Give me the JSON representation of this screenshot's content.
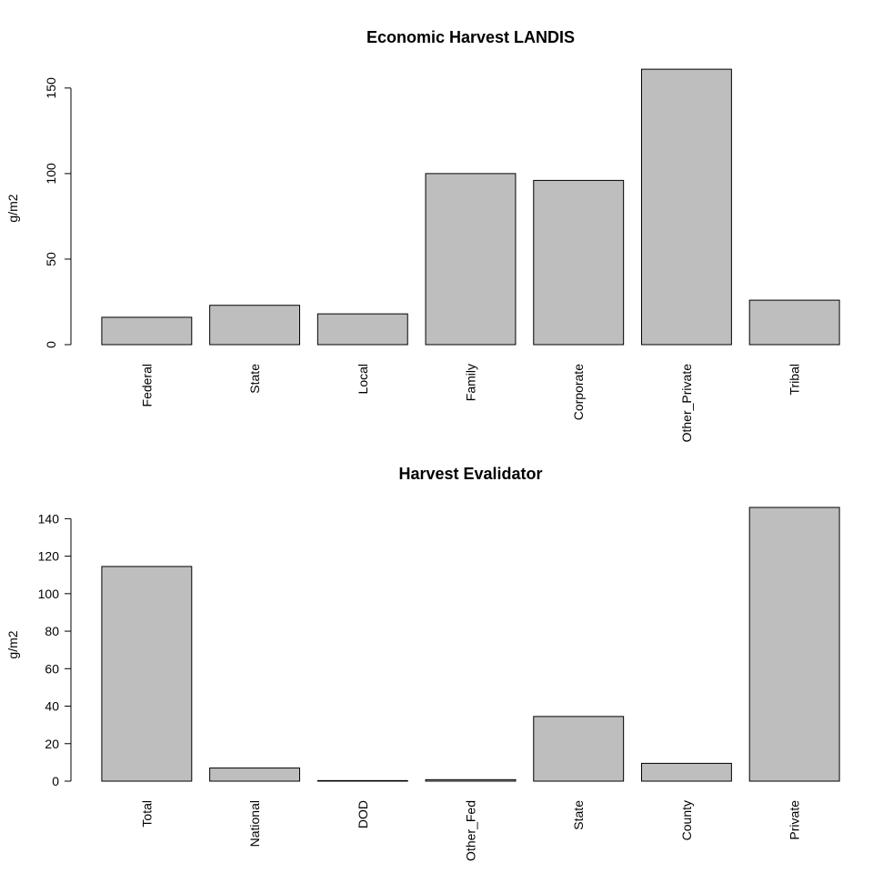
{
  "colors": {
    "bar_fill": "#bebebe",
    "bar_stroke": "#000000",
    "axis": "#000000"
  },
  "chart_data": [
    {
      "type": "bar",
      "title": "Economic Harvest LANDIS",
      "xlabel": "",
      "ylabel": "g/m2",
      "categories": [
        "Federal",
        "State",
        "Local",
        "Family",
        "Corporate",
        "Other_Private",
        "Tribal"
      ],
      "values": [
        16,
        23,
        18,
        100,
        96,
        161,
        26
      ],
      "ylim": [
        0,
        160
      ],
      "yticks": [
        0,
        50,
        100,
        150
      ],
      "ytick_orientation": "vertical",
      "grid": false,
      "legend": "none"
    },
    {
      "type": "bar",
      "title": "Harvest Evalidator",
      "xlabel": "",
      "ylabel": "g/m2",
      "categories": [
        "Total",
        "National",
        "DOD",
        "Other_Fed",
        "State",
        "County",
        "Private"
      ],
      "values": [
        114.5,
        7,
        0.3,
        0.8,
        34.5,
        9.5,
        146
      ],
      "ylim": [
        0,
        146
      ],
      "yticks": [
        0,
        20,
        40,
        60,
        80,
        100,
        120,
        140
      ],
      "ytick_orientation": "horizontal",
      "grid": false,
      "legend": "none"
    }
  ]
}
